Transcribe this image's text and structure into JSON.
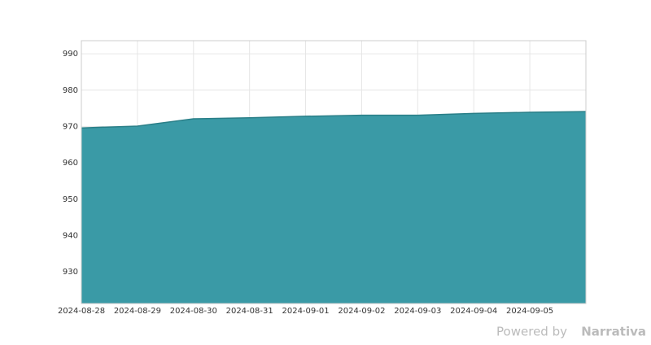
{
  "chart_data": {
    "type": "area",
    "x": [
      "2024-08-28",
      "2024-08-29",
      "2024-08-30",
      "2024-08-31",
      "2024-09-01",
      "2024-09-02",
      "2024-09-03",
      "2024-09-04",
      "2024-09-05",
      "2024-09-06"
    ],
    "values": [
      969.6,
      970.1,
      972.1,
      972.4,
      972.8,
      973.1,
      973.1,
      973.6,
      973.9,
      974.1
    ],
    "color": "#3a9aa6",
    "line_color": "#2a7f88",
    "xlim": [
      "2024-08-28",
      "2024-09-06"
    ],
    "xticks": [
      "2024-08-28",
      "2024-08-29",
      "2024-08-30",
      "2024-08-31",
      "2024-09-01",
      "2024-09-02",
      "2024-09-03",
      "2024-09-04",
      "2024-09-05"
    ],
    "ylim": [
      921.3,
      993.6
    ],
    "yticks": [
      930,
      940,
      950,
      960,
      970,
      980,
      990
    ],
    "grid": true
  },
  "footer": {
    "prefix": "Powered by",
    "brand": "Narrativa"
  }
}
